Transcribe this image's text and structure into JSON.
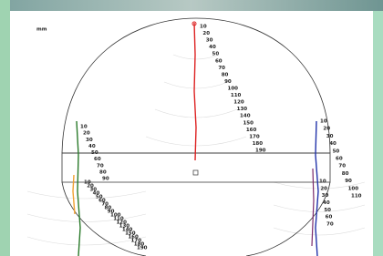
{
  "unit": "mm",
  "scales": [
    {
      "labels": [
        10,
        20,
        30,
        40,
        50,
        60,
        70,
        80,
        90,
        100,
        110,
        120,
        130,
        140,
        150,
        160,
        170,
        180,
        190
      ]
    },
    {
      "labels": [
        10,
        20,
        30,
        40,
        50,
        60,
        70,
        80,
        90
      ]
    },
    {
      "labels": [
        10,
        20,
        30,
        40,
        50,
        60,
        70,
        80,
        90,
        100,
        110,
        120,
        130,
        140,
        150,
        160,
        170,
        180,
        190
      ]
    },
    {
      "labels": [
        10,
        20,
        30,
        40,
        50,
        60,
        70,
        80,
        90,
        100,
        110
      ]
    },
    {
      "labels": [
        10,
        20,
        30,
        40,
        50,
        60,
        70
      ]
    }
  ]
}
